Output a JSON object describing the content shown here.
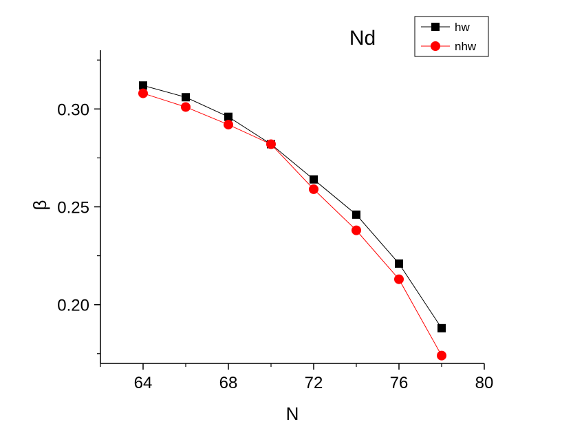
{
  "chart_data": {
    "type": "line",
    "title": "Nd",
    "xlabel": "N",
    "ylabel": "β",
    "xlim": [
      62,
      80
    ],
    "ylim": [
      0.17,
      0.33
    ],
    "x_ticks": [
      64,
      68,
      72,
      76,
      80
    ],
    "x_tick_labels": [
      "64",
      "68",
      "72",
      "76",
      "80"
    ],
    "y_ticks": [
      0.2,
      0.25,
      0.3
    ],
    "y_tick_labels": [
      "0.20",
      "0.25",
      "0.30"
    ],
    "grid": false,
    "legend_position": "top-right",
    "series": [
      {
        "name": "hw",
        "color": "#000000",
        "marker": "square",
        "x": [
          64,
          66,
          68,
          70,
          72,
          74,
          76,
          78
        ],
        "y": [
          0.312,
          0.306,
          0.296,
          0.282,
          0.264,
          0.246,
          0.221,
          0.188
        ]
      },
      {
        "name": "nhw",
        "color": "#ff0000",
        "marker": "circle",
        "x": [
          64,
          66,
          68,
          70,
          72,
          74,
          76,
          78
        ],
        "y": [
          0.308,
          0.301,
          0.292,
          0.282,
          0.259,
          0.238,
          0.213,
          0.174
        ]
      }
    ]
  }
}
